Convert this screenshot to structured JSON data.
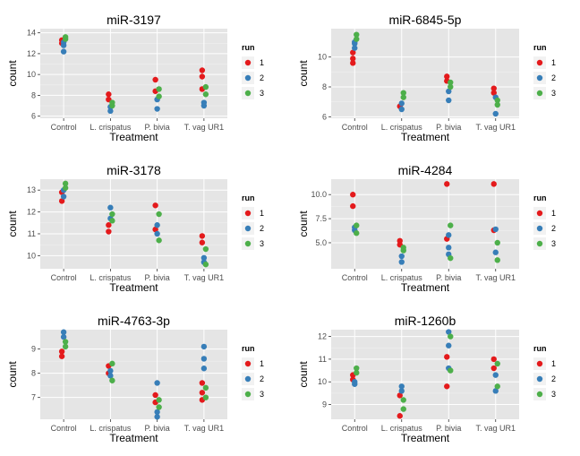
{
  "colors": {
    "run1": "#E41A1C",
    "run2": "#377EB8",
    "run3": "#4DAF4A",
    "panel_bg": "#E5E5E5",
    "grid": "#FFFFFF",
    "text": "#000000",
    "tick_text": "#4D4D4D"
  },
  "chart_data": [
    {
      "type": "scatter",
      "title": "miR-3197",
      "xlabel": "Treatment",
      "ylabel": "count",
      "categories": [
        "Control",
        "L. crispatus",
        "P. bivia",
        "T. vag UR1"
      ],
      "yticks": [
        6,
        8,
        10,
        12,
        14
      ],
      "ylim": [
        5.8,
        14.4
      ],
      "legend": {
        "title": "run",
        "labels": [
          "1",
          "2",
          "3"
        ],
        "position": "right"
      },
      "series": [
        {
          "name": "1",
          "points": [
            [
              0,
              13.0
            ],
            [
              0,
              13.3
            ],
            [
              1,
              8.1
            ],
            [
              1,
              7.6
            ],
            [
              2,
              9.5
            ],
            [
              2,
              8.4
            ],
            [
              3,
              10.4
            ],
            [
              3,
              9.8
            ],
            [
              3,
              8.6
            ]
          ]
        },
        {
          "name": "2",
          "points": [
            [
              0,
              12.2
            ],
            [
              0,
              12.8
            ],
            [
              0,
              13.1
            ],
            [
              1,
              6.5
            ],
            [
              1,
              6.9
            ],
            [
              2,
              6.7
            ],
            [
              2,
              7.6
            ],
            [
              3,
              7.0
            ],
            [
              3,
              7.3
            ]
          ]
        },
        {
          "name": "3",
          "points": [
            [
              0,
              13.4
            ],
            [
              0,
              13.6
            ],
            [
              1,
              7.0
            ],
            [
              1,
              7.3
            ],
            [
              2,
              7.9
            ],
            [
              2,
              8.6
            ],
            [
              3,
              8.8
            ],
            [
              3,
              8.1
            ]
          ]
        }
      ]
    },
    {
      "type": "scatter",
      "title": "miR-6845-5p",
      "xlabel": "Treatment",
      "ylabel": "count",
      "categories": [
        "Control",
        "L. crispatus",
        "P. bivia",
        "T. vag UR1"
      ],
      "yticks": [
        6,
        8,
        10
      ],
      "ylim": [
        5.9,
        11.9
      ],
      "legend": {
        "title": "run",
        "labels": [
          "1",
          "2",
          "3"
        ],
        "position": "right"
      },
      "series": [
        {
          "name": "1",
          "points": [
            [
              0,
              9.6
            ],
            [
              0,
              9.9
            ],
            [
              0,
              10.3
            ],
            [
              1,
              6.7
            ],
            [
              2,
              8.7
            ],
            [
              2,
              8.4
            ],
            [
              3,
              7.9
            ],
            [
              3,
              7.6
            ]
          ]
        },
        {
          "name": "2",
          "points": [
            [
              0,
              10.6
            ],
            [
              0,
              10.9
            ],
            [
              0,
              11.0
            ],
            [
              1,
              6.5
            ],
            [
              1,
              6.9
            ],
            [
              2,
              7.1
            ],
            [
              2,
              7.7
            ],
            [
              3,
              6.2
            ],
            [
              3,
              7.3
            ]
          ]
        },
        {
          "name": "3",
          "points": [
            [
              0,
              11.2
            ],
            [
              0,
              11.5
            ],
            [
              1,
              7.3
            ],
            [
              1,
              7.6
            ],
            [
              2,
              8.0
            ],
            [
              2,
              8.3
            ],
            [
              3,
              6.8
            ],
            [
              3,
              7.1
            ]
          ]
        }
      ]
    },
    {
      "type": "scatter",
      "title": "miR-3178",
      "xlabel": "Treatment",
      "ylabel": "count",
      "categories": [
        "Control",
        "L. crispatus",
        "P. bivia",
        "T. vag UR1"
      ],
      "yticks": [
        10,
        11,
        12,
        13
      ],
      "ylim": [
        9.4,
        13.5
      ],
      "legend": {
        "title": "run",
        "labels": [
          "1",
          "2",
          "3"
        ],
        "position": "right"
      },
      "series": [
        {
          "name": "1",
          "points": [
            [
              0,
              12.5
            ],
            [
              0,
              12.9
            ],
            [
              1,
              11.1
            ],
            [
              1,
              11.4
            ],
            [
              2,
              12.3
            ],
            [
              2,
              11.2
            ],
            [
              3,
              10.9
            ],
            [
              3,
              10.6
            ]
          ]
        },
        {
          "name": "2",
          "points": [
            [
              0,
              12.7
            ],
            [
              0,
              13.0
            ],
            [
              1,
              12.2
            ],
            [
              1,
              11.7
            ],
            [
              2,
              11.0
            ],
            [
              2,
              11.4
            ],
            [
              3,
              9.9
            ],
            [
              3,
              9.7
            ]
          ]
        },
        {
          "name": "3",
          "points": [
            [
              0,
              13.3
            ],
            [
              0,
              13.1
            ],
            [
              1,
              11.6
            ],
            [
              1,
              11.9
            ],
            [
              2,
              11.9
            ],
            [
              2,
              10.7
            ],
            [
              3,
              9.6
            ],
            [
              3,
              10.3
            ]
          ]
        }
      ]
    },
    {
      "type": "scatter",
      "title": "miR-4284",
      "xlabel": "Treatment",
      "ylabel": "count",
      "categories": [
        "Control",
        "L. crispatus",
        "P. bivia",
        "T. vag UR1"
      ],
      "yticks": [
        5.0,
        7.5,
        10.0
      ],
      "ylim": [
        2.3,
        11.6
      ],
      "yformat": 1,
      "legend": {
        "title": "run",
        "labels": [
          "1",
          "2",
          "3"
        ],
        "position": "right"
      },
      "series": [
        {
          "name": "1",
          "points": [
            [
              0,
              10.0
            ],
            [
              0,
              8.8
            ],
            [
              1,
              5.2
            ],
            [
              1,
              4.8
            ],
            [
              2,
              11.1
            ],
            [
              2,
              5.4
            ],
            [
              3,
              11.1
            ],
            [
              3,
              6.3
            ]
          ]
        },
        {
          "name": "2",
          "points": [
            [
              0,
              6.3
            ],
            [
              0,
              6.6
            ],
            [
              1,
              3.0
            ],
            [
              1,
              3.6
            ],
            [
              2,
              3.8
            ],
            [
              2,
              4.5
            ],
            [
              2,
              5.8
            ],
            [
              3,
              4.0
            ],
            [
              3,
              6.4
            ]
          ]
        },
        {
          "name": "3",
          "points": [
            [
              0,
              6.0
            ],
            [
              0,
              6.8
            ],
            [
              1,
              4.2
            ],
            [
              1,
              4.5
            ],
            [
              2,
              6.8
            ],
            [
              2,
              3.4
            ],
            [
              3,
              3.2
            ],
            [
              3,
              5.0
            ]
          ]
        }
      ]
    },
    {
      "type": "scatter",
      "title": "miR-4763-3p",
      "xlabel": "Treatment",
      "ylabel": "count",
      "categories": [
        "Control",
        "L. crispatus",
        "P. bivia",
        "T. vag UR1"
      ],
      "yticks": [
        7,
        8,
        9
      ],
      "ylim": [
        6.1,
        9.8
      ],
      "legend": {
        "title": "run",
        "labels": [
          "1",
          "2",
          "3"
        ],
        "position": "right"
      },
      "series": [
        {
          "name": "1",
          "points": [
            [
              0,
              8.7
            ],
            [
              0,
              8.9
            ],
            [
              1,
              8.3
            ],
            [
              1,
              8.0
            ],
            [
              2,
              7.1
            ],
            [
              2,
              6.8
            ],
            [
              3,
              7.6
            ],
            [
              3,
              7.2
            ],
            [
              3,
              6.9
            ]
          ]
        },
        {
          "name": "2",
          "points": [
            [
              0,
              9.5
            ],
            [
              0,
              9.7
            ],
            [
              1,
              8.1
            ],
            [
              1,
              7.9
            ],
            [
              2,
              7.6
            ],
            [
              2,
              6.4
            ],
            [
              2,
              6.2
            ],
            [
              3,
              9.1
            ],
            [
              3,
              8.6
            ],
            [
              3,
              8.2
            ]
          ]
        },
        {
          "name": "3",
          "points": [
            [
              0,
              9.1
            ],
            [
              0,
              9.3
            ],
            [
              1,
              7.7
            ],
            [
              1,
              8.4
            ],
            [
              2,
              6.9
            ],
            [
              2,
              6.6
            ],
            [
              3,
              7.4
            ],
            [
              3,
              7.0
            ]
          ]
        }
      ]
    },
    {
      "type": "scatter",
      "title": "miR-1260b",
      "xlabel": "Treatment",
      "ylabel": "count",
      "categories": [
        "Control",
        "L. crispatus",
        "P. bivia",
        "T. vag UR1"
      ],
      "yticks": [
        9,
        10,
        11,
        12
      ],
      "ylim": [
        8.35,
        12.3
      ],
      "legend": {
        "title": "run",
        "labels": [
          "1",
          "2",
          "3"
        ],
        "position": "right"
      },
      "series": [
        {
          "name": "1",
          "points": [
            [
              0,
              10.3
            ],
            [
              0,
              10.1
            ],
            [
              1,
              8.5
            ],
            [
              1,
              9.4
            ],
            [
              2,
              9.8
            ],
            [
              2,
              11.1
            ],
            [
              3,
              11.0
            ],
            [
              3,
              10.6
            ]
          ]
        },
        {
          "name": "2",
          "points": [
            [
              0,
              10.0
            ],
            [
              0,
              9.9
            ],
            [
              1,
              9.6
            ],
            [
              1,
              9.8
            ],
            [
              2,
              12.2
            ],
            [
              2,
              11.6
            ],
            [
              2,
              10.6
            ],
            [
              3,
              9.6
            ],
            [
              3,
              10.3
            ]
          ]
        },
        {
          "name": "3",
          "points": [
            [
              0,
              10.6
            ],
            [
              0,
              10.4
            ],
            [
              1,
              8.8
            ],
            [
              1,
              9.2
            ],
            [
              2,
              12.0
            ],
            [
              2,
              10.5
            ],
            [
              3,
              9.8
            ],
            [
              3,
              10.8
            ]
          ]
        }
      ]
    }
  ]
}
